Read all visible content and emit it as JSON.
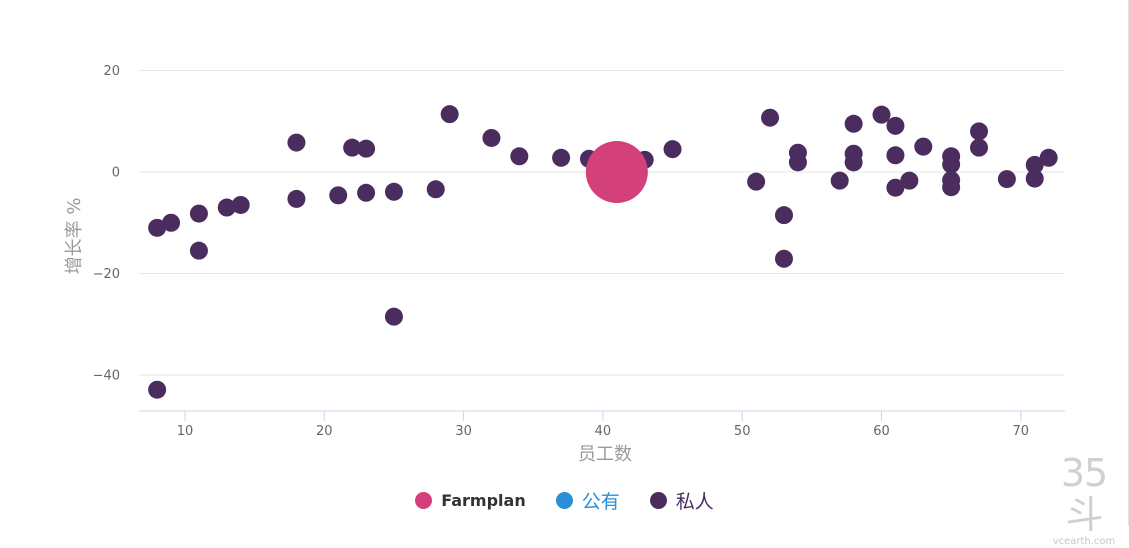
{
  "chart_data": {
    "type": "scatter",
    "xlabel": "员工数",
    "ylabel": "增长率 %",
    "x_ticks": [
      10,
      20,
      30,
      40,
      50,
      60,
      70
    ],
    "y_ticks": [
      20,
      0,
      -20,
      -40
    ],
    "xlim": [
      7,
      74
    ],
    "ylim": [
      -47,
      25
    ],
    "grid": "horizontal",
    "legend_placement": "bottom-center",
    "series": [
      {
        "name": "Farmplan",
        "color": "#d4407a",
        "points": [
          [
            41,
            0
          ]
        ]
      },
      {
        "name": "公有",
        "color": "#2b8fd8",
        "points": []
      },
      {
        "name": "私人",
        "color": "#4a2c5e",
        "points": [
          [
            8,
            -11
          ],
          [
            9,
            -10
          ],
          [
            11,
            -8.2
          ],
          [
            11,
            -15.5
          ],
          [
            13,
            -7
          ],
          [
            14,
            -6.5
          ],
          [
            18,
            5.8
          ],
          [
            18,
            -5.3
          ],
          [
            21,
            -4.6
          ],
          [
            22,
            4.8
          ],
          [
            23,
            4.6
          ],
          [
            23,
            -4.1
          ],
          [
            25,
            -3.9
          ],
          [
            25,
            -28.5
          ],
          [
            28,
            -3.4
          ],
          [
            29,
            11.4
          ],
          [
            32,
            6.7
          ],
          [
            34,
            3.1
          ],
          [
            37,
            2.8
          ],
          [
            39,
            2.6
          ],
          [
            43,
            2.4
          ],
          [
            45,
            4.5
          ],
          [
            51,
            -1.9
          ],
          [
            52,
            10.7
          ],
          [
            53,
            -8.5
          ],
          [
            53,
            -17.1
          ],
          [
            54,
            3.8
          ],
          [
            54,
            1.9
          ],
          [
            57,
            -1.7
          ],
          [
            58,
            9.5
          ],
          [
            58,
            3.6
          ],
          [
            58,
            1.9
          ],
          [
            60,
            11.3
          ],
          [
            61,
            9.1
          ],
          [
            61,
            3.3
          ],
          [
            61,
            -3.1
          ],
          [
            62,
            -1.7
          ],
          [
            63,
            5.0
          ],
          [
            65,
            3.1
          ],
          [
            65,
            1.5
          ],
          [
            65,
            -1.6
          ],
          [
            65,
            -3.0
          ],
          [
            67,
            8.0
          ],
          [
            67,
            4.8
          ],
          [
            69,
            -1.4
          ],
          [
            71,
            1.4
          ],
          [
            71,
            -1.3
          ],
          [
            72,
            2.8
          ],
          [
            8,
            -42.9
          ]
        ]
      }
    ]
  },
  "watermark": {
    "main": "35斗",
    "sub": "vcearth.com"
  }
}
